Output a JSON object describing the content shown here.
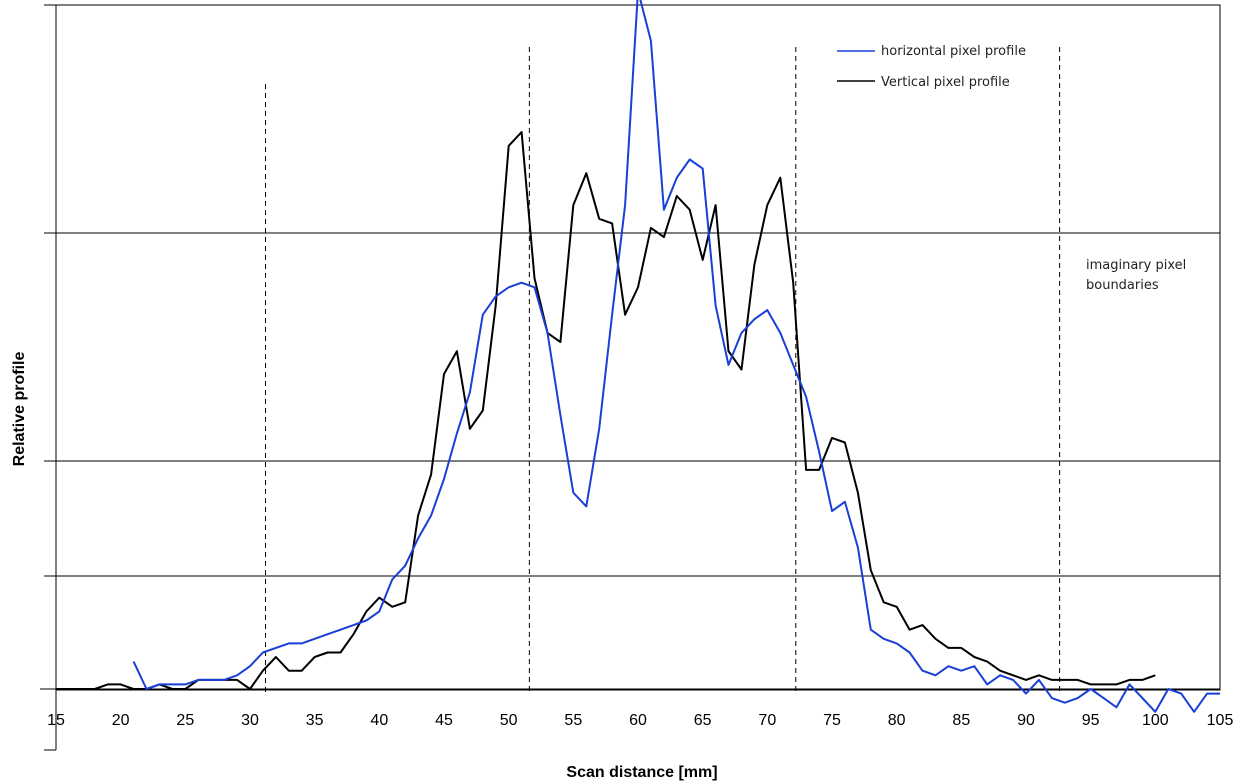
{
  "chart_data": {
    "type": "line",
    "title": "",
    "xlabel": "Scan distance [mm]",
    "ylabel": "Relative profile",
    "xlim": [
      15,
      105
    ],
    "ylim": [
      0,
      1.0
    ],
    "x_ticks": [
      15,
      20,
      25,
      30,
      35,
      40,
      45,
      50,
      55,
      60,
      65,
      70,
      75,
      80,
      85,
      90,
      95,
      100,
      105
    ],
    "y_gridlines": [
      0.25,
      0.5,
      0.75
    ],
    "grid": "horizontal",
    "legend_position": "top-right",
    "colors": {
      "horizontal": "#1a3fd6",
      "vertical": "#000000"
    },
    "series": [
      {
        "name": "horizontal pixel profile",
        "color": "#1a3fd6",
        "points": [
          [
            21,
            0.06
          ],
          [
            22,
            0.0
          ],
          [
            23,
            0.01
          ],
          [
            24,
            0.01
          ],
          [
            25,
            0.01
          ],
          [
            26,
            0.02
          ],
          [
            27,
            0.02
          ],
          [
            28,
            0.02
          ],
          [
            29,
            0.03
          ],
          [
            30,
            0.05
          ],
          [
            31,
            0.08
          ],
          [
            32,
            0.09
          ],
          [
            33,
            0.1
          ],
          [
            34,
            0.1
          ],
          [
            35,
            0.11
          ],
          [
            36,
            0.12
          ],
          [
            37,
            0.13
          ],
          [
            38,
            0.14
          ],
          [
            39,
            0.15
          ],
          [
            40,
            0.17
          ],
          [
            41,
            0.24
          ],
          [
            42,
            0.27
          ],
          [
            43,
            0.33
          ],
          [
            44,
            0.38
          ],
          [
            45,
            0.46
          ],
          [
            46,
            0.56
          ],
          [
            47,
            0.65
          ],
          [
            48,
            0.82
          ],
          [
            49,
            0.86
          ],
          [
            50,
            0.88
          ],
          [
            51,
            0.89
          ],
          [
            52,
            0.88
          ],
          [
            53,
            0.78
          ],
          [
            54,
            0.6
          ],
          [
            55,
            0.43
          ],
          [
            56,
            0.4
          ],
          [
            57,
            0.57
          ],
          [
            58,
            0.82
          ],
          [
            59,
            1.06
          ],
          [
            60,
            1.53
          ],
          [
            61,
            1.42
          ],
          [
            62,
            1.05
          ],
          [
            63,
            1.12
          ],
          [
            64,
            1.16
          ],
          [
            65,
            1.14
          ],
          [
            66,
            0.84
          ],
          [
            67,
            0.71
          ],
          [
            68,
            0.78
          ],
          [
            69,
            0.81
          ],
          [
            70,
            0.83
          ],
          [
            71,
            0.78
          ],
          [
            72,
            0.71
          ],
          [
            73,
            0.64
          ],
          [
            74,
            0.52
          ],
          [
            75,
            0.39
          ],
          [
            76,
            0.41
          ],
          [
            77,
            0.31
          ],
          [
            78,
            0.13
          ],
          [
            79,
            0.11
          ],
          [
            80,
            0.1
          ],
          [
            81,
            0.08
          ],
          [
            82,
            0.04
          ],
          [
            83,
            0.03
          ],
          [
            84,
            0.05
          ],
          [
            85,
            0.04
          ],
          [
            86,
            0.05
          ],
          [
            87,
            0.01
          ],
          [
            88,
            0.03
          ],
          [
            89,
            0.02
          ],
          [
            90,
            -0.01
          ],
          [
            91,
            0.02
          ],
          [
            92,
            -0.02
          ],
          [
            93,
            -0.03
          ],
          [
            94,
            -0.02
          ],
          [
            95,
            0.0
          ],
          [
            96,
            -0.02
          ],
          [
            97,
            -0.04
          ],
          [
            98,
            0.01
          ],
          [
            99,
            -0.02
          ],
          [
            100,
            -0.05
          ],
          [
            101,
            0.0
          ],
          [
            102,
            -0.01
          ],
          [
            103,
            -0.05
          ],
          [
            104,
            -0.01
          ],
          [
            105,
            -0.01
          ]
        ]
      },
      {
        "name": "Vertical pixel profile",
        "color": "#000000",
        "points": [
          [
            15,
            0.0
          ],
          [
            16,
            0.0
          ],
          [
            17,
            0.0
          ],
          [
            18,
            0.0
          ],
          [
            19,
            0.01
          ],
          [
            20,
            0.01
          ],
          [
            21,
            0.0
          ],
          [
            22,
            0.0
          ],
          [
            23,
            0.01
          ],
          [
            24,
            0.0
          ],
          [
            25,
            0.0
          ],
          [
            26,
            0.02
          ],
          [
            27,
            0.02
          ],
          [
            28,
            0.02
          ],
          [
            29,
            0.02
          ],
          [
            30,
            0.0
          ],
          [
            31,
            0.04
          ],
          [
            32,
            0.07
          ],
          [
            33,
            0.04
          ],
          [
            34,
            0.04
          ],
          [
            35,
            0.07
          ],
          [
            36,
            0.08
          ],
          [
            37,
            0.08
          ],
          [
            38,
            0.12
          ],
          [
            39,
            0.17
          ],
          [
            40,
            0.2
          ],
          [
            41,
            0.18
          ],
          [
            42,
            0.19
          ],
          [
            43,
            0.38
          ],
          [
            44,
            0.47
          ],
          [
            45,
            0.69
          ],
          [
            46,
            0.74
          ],
          [
            47,
            0.57
          ],
          [
            48,
            0.61
          ],
          [
            49,
            0.84
          ],
          [
            50,
            1.19
          ],
          [
            51,
            1.22
          ],
          [
            52,
            0.9
          ],
          [
            53,
            0.78
          ],
          [
            54,
            0.76
          ],
          [
            55,
            1.06
          ],
          [
            56,
            1.13
          ],
          [
            57,
            1.03
          ],
          [
            58,
            1.02
          ],
          [
            59,
            0.82
          ],
          [
            60,
            0.88
          ],
          [
            61,
            1.01
          ],
          [
            62,
            0.99
          ],
          [
            63,
            1.08
          ],
          [
            64,
            1.05
          ],
          [
            65,
            0.94
          ],
          [
            66,
            1.06
          ],
          [
            67,
            0.74
          ],
          [
            68,
            0.7
          ],
          [
            69,
            0.93
          ],
          [
            70,
            1.06
          ],
          [
            71,
            1.12
          ],
          [
            72,
            0.89
          ],
          [
            73,
            0.48
          ],
          [
            74,
            0.48
          ],
          [
            75,
            0.55
          ],
          [
            76,
            0.54
          ],
          [
            77,
            0.43
          ],
          [
            78,
            0.26
          ],
          [
            79,
            0.19
          ],
          [
            80,
            0.18
          ],
          [
            81,
            0.13
          ],
          [
            82,
            0.14
          ],
          [
            83,
            0.11
          ],
          [
            84,
            0.09
          ],
          [
            85,
            0.09
          ],
          [
            86,
            0.07
          ],
          [
            87,
            0.06
          ],
          [
            88,
            0.04
          ],
          [
            89,
            0.03
          ],
          [
            90,
            0.02
          ],
          [
            91,
            0.03
          ],
          [
            92,
            0.02
          ],
          [
            93,
            0.02
          ],
          [
            94,
            0.02
          ],
          [
            95,
            0.01
          ],
          [
            96,
            0.01
          ],
          [
            97,
            0.01
          ],
          [
            98,
            0.02
          ],
          [
            99,
            0.02
          ],
          [
            100,
            0.03
          ]
        ]
      }
    ],
    "annotation": {
      "lines": [
        "imaginary pixel",
        "boundaries"
      ],
      "boundary_x": [
        31.2,
        51.6,
        72.2,
        92.6
      ]
    }
  }
}
